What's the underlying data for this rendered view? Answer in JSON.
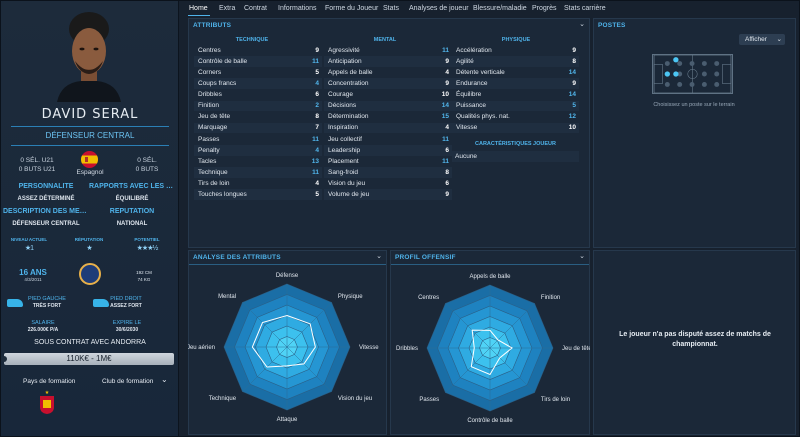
{
  "player": {
    "name": "DAVID SERAL",
    "position": "DÉFENSEUR CENTRAL",
    "sel_left": "0 SÉL. U21",
    "buts_left": "0 BUTS U21",
    "nationality": "Espagnol",
    "sel_right": "0 SÉL.",
    "buts_right": "0 BUTS",
    "personality_label": "PERSONNALITÉ",
    "personality_value": "ASSEZ DÉTERMINÉ",
    "relations_label": "RAPPORTS AVEC LES MÉD...",
    "relations_value": "ÉQUILIBRÉ",
    "media_label": "DESCRIPTION DES MÉDIAS",
    "media_value": "DÉFENSEUR CENTRAL",
    "reputation_label": "RÉPUTATION",
    "reputation_value": "NATIONAL",
    "niveau_label": "NIVEAU ACTUEL",
    "niveau_stars": "★1",
    "reputation_small_label": "RÉPUTATION",
    "reputation_stars": "★",
    "potentiel_label": "POTENTIEL",
    "potentiel_stars": "★★★½",
    "age": "16 ANS",
    "dob": "4/3/2011",
    "height": "192 CM",
    "weight": "74 KG",
    "left_foot_label": "PIED GAUCHE",
    "left_foot_value": "TRÈS FORT",
    "right_foot_label": "PIED DROIT",
    "right_foot_value": "ASSEZ FORT",
    "salary_label": "SALAIRE",
    "salary_value": "226.000€ P/A",
    "expiry_label": "EXPIRE LE",
    "expiry_value": "30/6/2030",
    "contract_title": "SOUS CONTRAT AVEC ANDORRA",
    "value_range": "110K€ - 1M€",
    "pays_formation": "Pays de formation",
    "club_formation": "Club de formation"
  },
  "tabs": [
    "Home",
    "Extra",
    "Contrat",
    "Informations",
    "Forme du Joueur",
    "Stats",
    "Analyses de joueur",
    "Blessure/maladie",
    "Progrès",
    "Stats carrière"
  ],
  "attributes": {
    "title": "ATTRIBUTS",
    "technique_title": "TECHNIQUE",
    "mental_title": "MENTAL",
    "physique_title": "PHYSIQUE",
    "technique": [
      {
        "name": "Centres",
        "value": "9",
        "tone": "white"
      },
      {
        "name": "Contrôle de balle",
        "value": "11",
        "tone": "blue"
      },
      {
        "name": "Corners",
        "value": "5",
        "tone": "white"
      },
      {
        "name": "Coups francs",
        "value": "4",
        "tone": "blue"
      },
      {
        "name": "Dribbles",
        "value": "6",
        "tone": "white"
      },
      {
        "name": "Finition",
        "value": "2",
        "tone": "blue"
      },
      {
        "name": "Jeu de tête",
        "value": "8",
        "tone": "white"
      },
      {
        "name": "Marquage",
        "value": "7",
        "tone": "white"
      },
      {
        "name": "Passes",
        "value": "11",
        "tone": "blue"
      },
      {
        "name": "Penalty",
        "value": "4",
        "tone": "blue"
      },
      {
        "name": "Tacles",
        "value": "13",
        "tone": "blue"
      },
      {
        "name": "Technique",
        "value": "11",
        "tone": "blue"
      },
      {
        "name": "Tirs de loin",
        "value": "4",
        "tone": "white"
      },
      {
        "name": "Touches longues",
        "value": "5",
        "tone": "white"
      }
    ],
    "mental": [
      {
        "name": "Agressivité",
        "value": "11",
        "tone": "blue"
      },
      {
        "name": "Anticipation",
        "value": "9",
        "tone": "white"
      },
      {
        "name": "Appels de balle",
        "value": "4",
        "tone": "white"
      },
      {
        "name": "Concentration",
        "value": "9",
        "tone": "white"
      },
      {
        "name": "Courage",
        "value": "10",
        "tone": "white"
      },
      {
        "name": "Décisions",
        "value": "14",
        "tone": "blue"
      },
      {
        "name": "Détermination",
        "value": "15",
        "tone": "blue"
      },
      {
        "name": "Inspiration",
        "value": "4",
        "tone": "white"
      },
      {
        "name": "Jeu collectif",
        "value": "11",
        "tone": "blue"
      },
      {
        "name": "Leadership",
        "value": "6",
        "tone": "white"
      },
      {
        "name": "Placement",
        "value": "11",
        "tone": "blue"
      },
      {
        "name": "Sang-froid",
        "value": "8",
        "tone": "white"
      },
      {
        "name": "Vision du jeu",
        "value": "6",
        "tone": "white"
      },
      {
        "name": "Volume de jeu",
        "value": "9",
        "tone": "white"
      }
    ],
    "physique": [
      {
        "name": "Accélération",
        "value": "9",
        "tone": "white"
      },
      {
        "name": "Agilité",
        "value": "8",
        "tone": "white"
      },
      {
        "name": "Détente verticale",
        "value": "14",
        "tone": "blue"
      },
      {
        "name": "Endurance",
        "value": "9",
        "tone": "white"
      },
      {
        "name": "Équilibre",
        "value": "14",
        "tone": "blue"
      },
      {
        "name": "Puissance",
        "value": "5",
        "tone": "blue"
      },
      {
        "name": "Qualités phys. nat.",
        "value": "12",
        "tone": "blue"
      },
      {
        "name": "Vitesse",
        "value": "10",
        "tone": "white"
      }
    ],
    "traits_title": "CARACTÉRISTIQUES JOUEUR",
    "traits_value": "Aucune"
  },
  "postes": {
    "title": "POSTES",
    "button": "Afficher",
    "hint": "Choisissez un poste sur le terrain"
  },
  "analysis": {
    "title": "ANALYSE DES ATTRIBUTS",
    "labels": [
      "Défense",
      "Physique",
      "Vitesse",
      "Vision du jeu",
      "Attaque",
      "Technique",
      "Jeu aérien",
      "Mental"
    ]
  },
  "profile": {
    "title": "PROFIL OFFENSIF",
    "labels": [
      "Appels de balle",
      "Finition",
      "Jeu de tête",
      "Tirs de loin",
      "Contrôle de balle",
      "Passes",
      "Dribbles",
      "Centres"
    ]
  },
  "matches_message": "Le joueur n'a pas disputé assez de matchs de championnat.",
  "colors": {
    "accent": "#4fb3ea",
    "radar_dark": "#1778b4",
    "radar_light": "#43d2f4"
  }
}
